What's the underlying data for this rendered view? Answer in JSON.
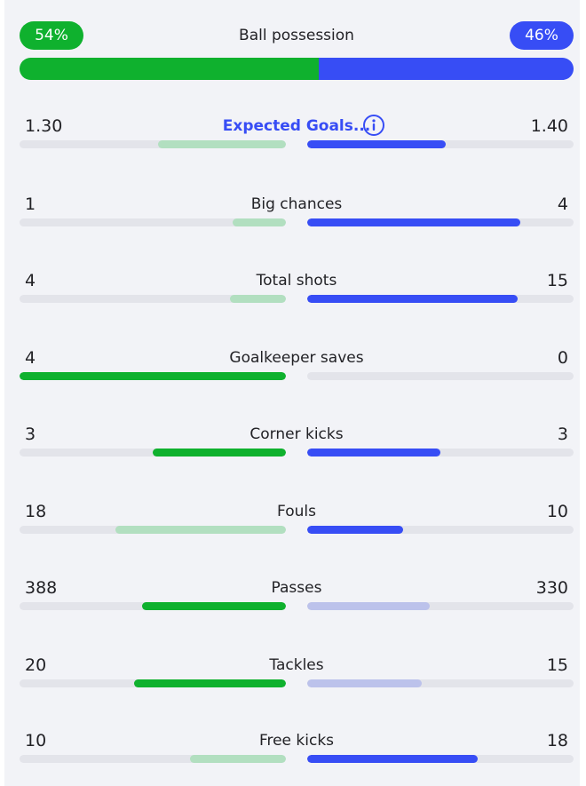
{
  "colors": {
    "home_strong": "#0fb12e",
    "home_light": "#b2dfc0",
    "away_strong": "#374df5",
    "away_light": "#bcc2eb",
    "track": "#e3e4ea"
  },
  "possession": {
    "title": "Ball possession",
    "home_label": "54%",
    "away_label": "46%",
    "home": 54,
    "away": 46
  },
  "stats": [
    {
      "label": "Expected Goals...",
      "home": "1.30",
      "away": "1.40",
      "home_fill": 0.48,
      "away_fill": 0.52,
      "home_color": "home_light",
      "away_color": "away_strong",
      "link": true,
      "info_icon": "info-icon"
    },
    {
      "label": "Big chances",
      "home": "1",
      "away": "4",
      "home_fill": 0.2,
      "away_fill": 0.8,
      "home_color": "home_light",
      "away_color": "away_strong"
    },
    {
      "label": "Total shots",
      "home": "4",
      "away": "15",
      "home_fill": 0.21,
      "away_fill": 0.79,
      "home_color": "home_light",
      "away_color": "away_strong"
    },
    {
      "label": "Goalkeeper saves",
      "home": "4",
      "away": "0",
      "home_fill": 1.0,
      "away_fill": 0.0,
      "home_color": "home_strong",
      "away_color": "away_strong"
    },
    {
      "label": "Corner kicks",
      "home": "3",
      "away": "3",
      "home_fill": 0.5,
      "away_fill": 0.5,
      "home_color": "home_strong",
      "away_color": "away_strong"
    },
    {
      "label": "Fouls",
      "home": "18",
      "away": "10",
      "home_fill": 0.64,
      "away_fill": 0.36,
      "home_color": "home_light",
      "away_color": "away_strong"
    },
    {
      "label": "Passes",
      "home": "388",
      "away": "330",
      "home_fill": 0.54,
      "away_fill": 0.46,
      "home_color": "home_strong",
      "away_color": "away_light"
    },
    {
      "label": "Tackles",
      "home": "20",
      "away": "15",
      "home_fill": 0.57,
      "away_fill": 0.43,
      "home_color": "home_strong",
      "away_color": "away_light"
    },
    {
      "label": "Free kicks",
      "home": "10",
      "away": "18",
      "home_fill": 0.36,
      "away_fill": 0.64,
      "home_color": "home_light",
      "away_color": "away_strong"
    }
  ]
}
